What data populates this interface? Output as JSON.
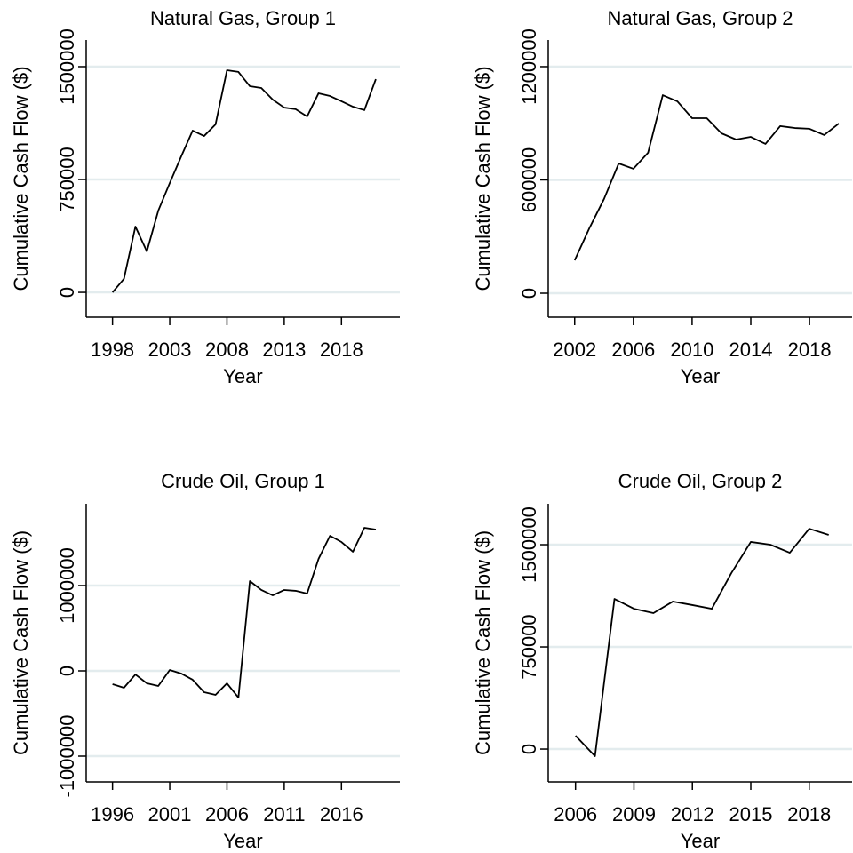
{
  "chart_data": [
    {
      "type": "line",
      "title": "Natural Gas, Group 1",
      "x_label": "Year",
      "y_label": "Cumulative Cash Flow ($)",
      "color": "#000000",
      "grid": true,
      "x": [
        1998,
        1999,
        2000,
        2001,
        2002,
        2003,
        2004,
        2005,
        2006,
        2007,
        2008,
        2009,
        2010,
        2011,
        2012,
        2013,
        2014,
        2015,
        2016,
        2017,
        2018,
        2019,
        2020,
        2021
      ],
      "values": [
        0,
        90000,
        437000,
        272000,
        543000,
        726000,
        903000,
        1075000,
        1039000,
        1116000,
        1476000,
        1465000,
        1370000,
        1358000,
        1281000,
        1228000,
        1217000,
        1169000,
        1323000,
        1305000,
        1270000,
        1234000,
        1211000,
        1417000
      ],
      "xlim": [
        1995.7,
        2023.1
      ],
      "ylim": [
        -165000,
        1677000
      ],
      "xticks": [
        1998,
        2003,
        2008,
        2013,
        2018
      ],
      "yticks": [
        0,
        750000,
        1500000
      ]
    },
    {
      "type": "line",
      "title": "Natural Gas, Group 2",
      "x_label": "Year",
      "y_label": "Cumulative Cash Flow ($)",
      "color": "#000000",
      "grid": true,
      "x": [
        2002,
        2003,
        2004,
        2005,
        2006,
        2007,
        2008,
        2009,
        2010,
        2011,
        2012,
        2013,
        2014,
        2015,
        2016,
        2017,
        2018,
        2019,
        2020
      ],
      "values": [
        174000,
        344000,
        499000,
        687000,
        659000,
        744000,
        1049000,
        1016000,
        927000,
        927000,
        847000,
        814000,
        828000,
        791000,
        885000,
        875000,
        871000,
        838000,
        899000
      ],
      "xlim": [
        2000.2,
        2020.9
      ],
      "ylim": [
        -127000,
        1341000
      ],
      "xticks": [
        2002,
        2006,
        2010,
        2014,
        2018
      ],
      "yticks": [
        0,
        600000,
        1200000
      ]
    },
    {
      "type": "line",
      "title": "Crude Oil, Group 1",
      "x_label": "Year",
      "y_label": "Cumulative Cash Flow ($)",
      "color": "#000000",
      "grid": true,
      "x": [
        1996,
        1997,
        1998,
        1999,
        2000,
        2001,
        2002,
        2003,
        2004,
        2005,
        2006,
        2007,
        2008,
        2009,
        2010,
        2011,
        2012,
        2013,
        2014,
        2015,
        2016,
        2017,
        2018,
        2019
      ],
      "values": [
        -156000,
        -198000,
        -42000,
        -146000,
        -177000,
        10000,
        -31000,
        -104000,
        -250000,
        -281000,
        -146000,
        -313000,
        1052000,
        948000,
        885000,
        948000,
        938000,
        906000,
        1313000,
        1583000,
        1510000,
        1396000,
        1677000,
        1656000
      ],
      "xlim": [
        1993.7,
        2021.1
      ],
      "ylim": [
        -1302000,
        1958000
      ],
      "xticks": [
        1996,
        2001,
        2006,
        2011,
        2016
      ],
      "yticks": [
        -1000000,
        0,
        1000000
      ]
    },
    {
      "type": "line",
      "title": "Crude Oil, Group 2",
      "x_label": "Year",
      "y_label": "Cumulative Cash Flow ($)",
      "color": "#000000",
      "grid": true,
      "x": [
        2006,
        2007,
        2008,
        2009,
        2010,
        2011,
        2012,
        2013,
        2014,
        2015,
        2016,
        2017,
        2018,
        2019
      ],
      "values": [
        98000,
        -52000,
        1102000,
        1030000,
        998000,
        1083000,
        1057000,
        1030000,
        1291000,
        1520000,
        1500000,
        1441000,
        1617000,
        1572000
      ],
      "xlim": [
        2004.6,
        2020.2
      ],
      "ylim": [
        -241000,
        1800000
      ],
      "xticks": [
        2006,
        2009,
        2012,
        2015,
        2018
      ],
      "yticks": [
        0,
        750000,
        1500000
      ]
    }
  ]
}
